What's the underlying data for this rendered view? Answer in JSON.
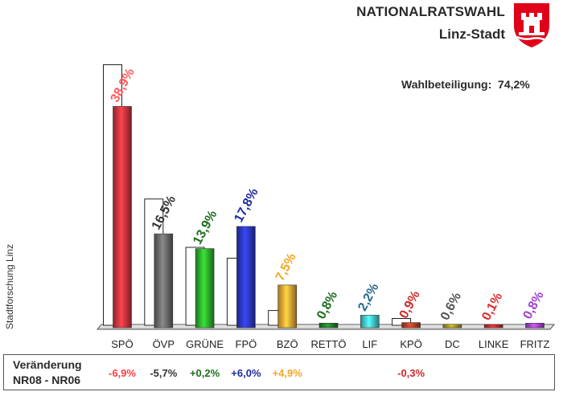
{
  "header": {
    "title": "NATIONALRATSWAHL",
    "subtitle": "Linz-Stadt",
    "emblem": "linz-coat-of-arms"
  },
  "turnout": {
    "label": "Wahlbeteiligung:",
    "value": "74,2%"
  },
  "source_label": "Stadtforschung Linz",
  "change": {
    "label_line1": "Veränderung",
    "label_line2": "NR08 - NR06"
  },
  "chart_data": {
    "type": "bar",
    "unit": "%",
    "categories": [
      "SPÖ",
      "ÖVP",
      "GRÜNE",
      "FPÖ",
      "BZÖ",
      "RETTÖ",
      "LIF",
      "KPÖ",
      "DC",
      "LINKE",
      "FRITZ"
    ],
    "series": [
      {
        "values": [
          38.9,
          16.5,
          13.9,
          17.8,
          7.5,
          0.8,
          2.2,
          0.9,
          0.6,
          0.1,
          0.8
        ],
        "labels": [
          "38,9%",
          "16,5%",
          "13,9%",
          "17,8%",
          "7,5%",
          "0,8%",
          "2,2%",
          "0,9%",
          "0,6%",
          "0,1%",
          "0,8%"
        ]
      },
      {
        "values": [
          45.8,
          22.2,
          13.7,
          11.8,
          2.6,
          null,
          null,
          1.2,
          null,
          null,
          null
        ],
        "style": "white outline bars behind"
      }
    ],
    "colors": [
      "#c8323c",
      "#666666",
      "#2aa82a",
      "#2a35b8",
      "#f0a030",
      "#1e7a28",
      "#40c4c8",
      "#b03a22",
      "#a09018",
      "#c82828",
      "#a040d0"
    ],
    "label_colors": [
      "#ff5a5a",
      "#333333",
      "#1e6e1e",
      "#1e2aa0",
      "#f5a623",
      "#1e6e1e",
      "#2a6a90",
      "#cc2a2a",
      "#555555",
      "#e02a2a",
      "#a040d0"
    ],
    "changes": [
      "-6,9%",
      "-5,7%",
      "+0,2%",
      "+6,0%",
      "+4,9%",
      "",
      "",
      "-0,3%",
      "",
      "",
      ""
    ],
    "change_colors": [
      "#ff4040",
      "#333333",
      "#1e6e1e",
      "#1e2aa0",
      "#f5a623",
      "",
      "",
      "#cc2a2a",
      "",
      "",
      ""
    ],
    "ylim": [
      0,
      48
    ],
    "grid": false,
    "legend": "none"
  }
}
